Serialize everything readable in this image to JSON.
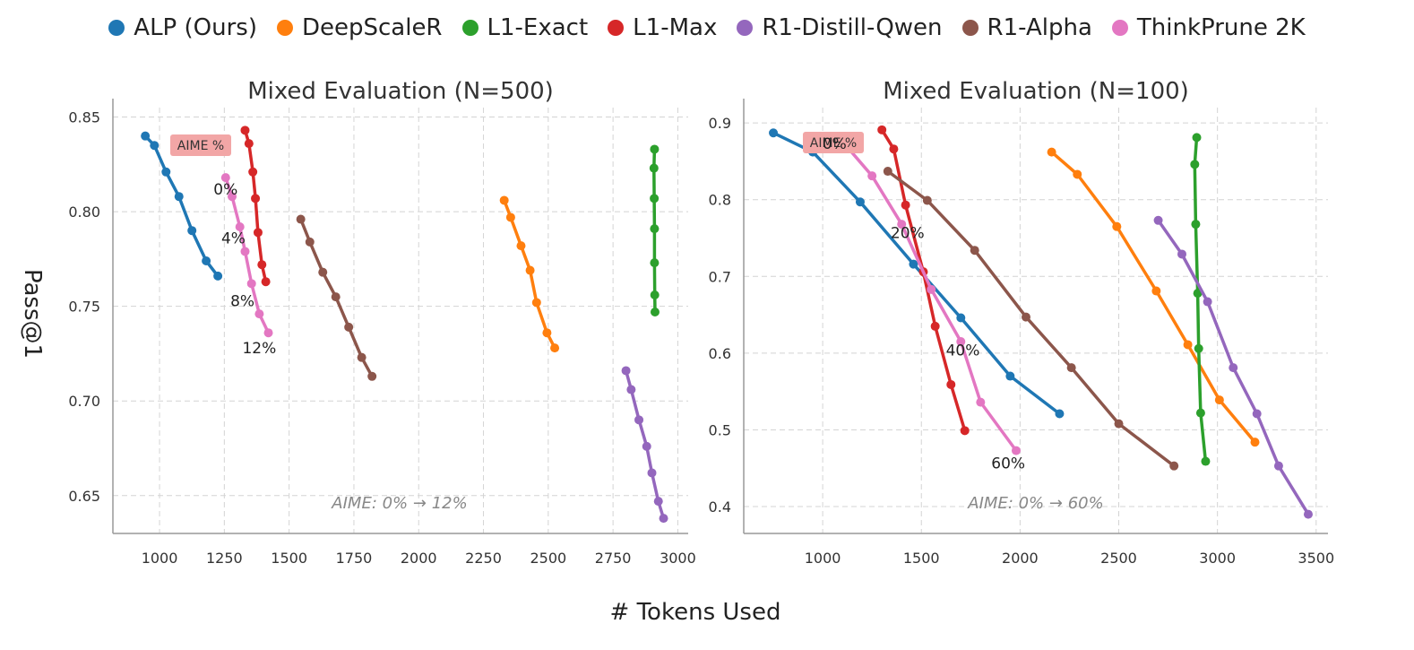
{
  "legend": [
    {
      "name": "ALP (Ours)",
      "color": "#1f77b4"
    },
    {
      "name": "DeepScaleR",
      "color": "#ff7f0e"
    },
    {
      "name": "L1-Exact",
      "color": "#2ca02c"
    },
    {
      "name": "L1-Max",
      "color": "#d62728"
    },
    {
      "name": "R1-Distill-Qwen",
      "color": "#9467bd"
    },
    {
      "name": "R1-Alpha",
      "color": "#8c564b"
    },
    {
      "name": "ThinkPrune 2K",
      "color": "#e377c2"
    }
  ],
  "ylabel": "Pass@1",
  "xlabel": "# Tokens Used",
  "chart_data": [
    {
      "type": "line",
      "title": "Mixed Evaluation (N=500)",
      "xlim": [
        820,
        3040
      ],
      "ylim": [
        0.63,
        0.855
      ],
      "xticks": [
        "1000",
        "1250",
        "1500",
        "1750",
        "2000",
        "2250",
        "2500",
        "2750",
        "3000"
      ],
      "yticks": [
        "0.65",
        "0.70",
        "0.75",
        "0.80",
        "0.85"
      ],
      "grid": true,
      "aime_badge": "AIME %",
      "annotation": "AIME: 0% → 12%",
      "series": [
        {
          "name": "ALP (Ours)",
          "x": [
            945,
            980,
            1025,
            1075,
            1125,
            1180,
            1225
          ],
          "y": [
            0.84,
            0.835,
            0.821,
            0.808,
            0.79,
            0.774,
            0.766
          ]
        },
        {
          "name": "DeepScaleR",
          "x": [
            2330,
            2355,
            2395,
            2430,
            2455,
            2495,
            2525
          ],
          "y": [
            0.806,
            0.797,
            0.782,
            0.769,
            0.752,
            0.736,
            0.728
          ]
        },
        {
          "name": "L1-Exact",
          "x": [
            2910,
            2908,
            2909,
            2910,
            2910,
            2911,
            2912
          ],
          "y": [
            0.833,
            0.823,
            0.807,
            0.791,
            0.773,
            0.756,
            0.747
          ]
        },
        {
          "name": "L1-Max",
          "x": [
            1330,
            1345,
            1360,
            1370,
            1380,
            1395,
            1410
          ],
          "y": [
            0.843,
            0.836,
            0.821,
            0.807,
            0.789,
            0.772,
            0.763
          ]
        },
        {
          "name": "R1-Distill-Qwen",
          "x": [
            2800,
            2820,
            2850,
            2880,
            2900,
            2925,
            2945
          ],
          "y": [
            0.716,
            0.706,
            0.69,
            0.676,
            0.662,
            0.647,
            0.638
          ]
        },
        {
          "name": "R1-Alpha",
          "x": [
            1545,
            1580,
            1630,
            1680,
            1730,
            1780,
            1820
          ],
          "y": [
            0.796,
            0.784,
            0.768,
            0.755,
            0.739,
            0.723,
            0.713
          ]
        },
        {
          "name": "ThinkPrune 2K",
          "x": [
            1255,
            1280,
            1310,
            1330,
            1355,
            1385,
            1420
          ],
          "y": [
            0.818,
            0.808,
            0.792,
            0.779,
            0.762,
            0.746,
            0.736
          ]
        }
      ],
      "point_labels": [
        {
          "text": "0%",
          "x": 1255,
          "y": 0.812
        },
        {
          "text": "4%",
          "x": 1285,
          "y": 0.786
        },
        {
          "text": "8%",
          "x": 1320,
          "y": 0.753
        },
        {
          "text": "12%",
          "x": 1385,
          "y": 0.728
        }
      ]
    },
    {
      "type": "line",
      "title": "Mixed Evaluation (N=100)",
      "xlim": [
        600,
        3560
      ],
      "ylim": [
        0.365,
        0.92
      ],
      "xticks": [
        "1000",
        "1500",
        "2000",
        "2500",
        "3000",
        "3500"
      ],
      "yticks": [
        "0.4",
        "0.5",
        "0.6",
        "0.7",
        "0.8",
        "0.9"
      ],
      "grid": true,
      "aime_badge": "AIME %",
      "annotation": "AIME: 0% → 60%",
      "series": [
        {
          "name": "ALP (Ours)",
          "x": [
            750,
            950,
            1190,
            1460,
            1700,
            1950,
            2200
          ],
          "y": [
            0.887,
            0.862,
            0.797,
            0.716,
            0.646,
            0.57,
            0.521
          ]
        },
        {
          "name": "DeepScaleR",
          "x": [
            2160,
            2290,
            2490,
            2690,
            2850,
            3010,
            3190
          ],
          "y": [
            0.862,
            0.833,
            0.765,
            0.681,
            0.611,
            0.539,
            0.484
          ]
        },
        {
          "name": "L1-Exact",
          "x": [
            2895,
            2885,
            2890,
            2900,
            2905,
            2915,
            2940
          ],
          "y": [
            0.881,
            0.846,
            0.768,
            0.678,
            0.606,
            0.522,
            0.459
          ]
        },
        {
          "name": "L1-Max",
          "x": [
            1300,
            1360,
            1420,
            1510,
            1570,
            1650,
            1720
          ],
          "y": [
            0.891,
            0.866,
            0.793,
            0.706,
            0.635,
            0.559,
            0.499
          ]
        },
        {
          "name": "R1-Distill-Qwen",
          "x": [
            2700,
            2820,
            2950,
            3080,
            3200,
            3310,
            3460
          ],
          "y": [
            0.773,
            0.729,
            0.667,
            0.581,
            0.521,
            0.453,
            0.39
          ]
        },
        {
          "name": "R1-Alpha",
          "x": [
            1330,
            1530,
            1770,
            2030,
            2260,
            2500,
            2780
          ],
          "y": [
            0.837,
            0.799,
            0.734,
            0.647,
            0.581,
            0.508,
            0.453
          ]
        },
        {
          "name": "ThinkPrune 2K",
          "x": [
            1120,
            1250,
            1400,
            1550,
            1700,
            1800,
            1980
          ],
          "y": [
            0.87,
            0.831,
            0.768,
            0.683,
            0.615,
            0.536,
            0.473
          ]
        }
      ],
      "point_labels": [
        {
          "text": "0%",
          "x": 1060,
          "y": 0.873
        },
        {
          "text": "20%",
          "x": 1430,
          "y": 0.757
        },
        {
          "text": "40%",
          "x": 1710,
          "y": 0.604
        },
        {
          "text": "60%",
          "x": 1940,
          "y": 0.457
        }
      ]
    }
  ]
}
